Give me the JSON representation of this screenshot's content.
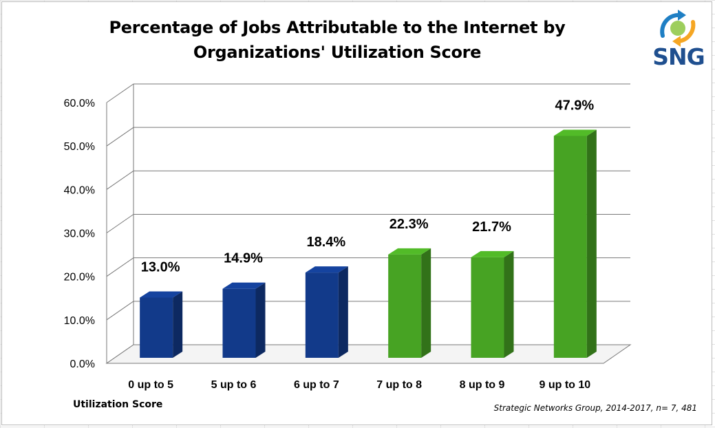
{
  "chart_data": {
    "type": "bar",
    "title_lines": [
      "Percentage of Jobs Attributable to the Internet by",
      "Organizations' Utilization Score"
    ],
    "xlabel": "Utilization Score",
    "ylabel": "",
    "categories": [
      "0 up to 5",
      "5 up to 6",
      "6 up to 7",
      "7 up to 8",
      "8 up to 9",
      "9 up to 10"
    ],
    "values": [
      13.0,
      14.9,
      18.4,
      22.3,
      21.7,
      47.9
    ],
    "data_labels": [
      "13.0%",
      "14.9%",
      "18.4%",
      "22.3%",
      "21.7%",
      "47.9%"
    ],
    "yticks": [
      0,
      10,
      20,
      30,
      40,
      50,
      60
    ],
    "ytick_labels": [
      "0.0%",
      "10.0%",
      "20.0%",
      "30.0%",
      "40.0%",
      "50.0%",
      "60.0%"
    ],
    "ylim": [
      0,
      60
    ],
    "grid": true,
    "bar_colors": [
      "#123a8a",
      "#123a8a",
      "#123a8a",
      "#47a323",
      "#47a323",
      "#47a323"
    ],
    "source": "Strategic Networks Group, 2014-2017, n= 7, 481"
  },
  "logo": {
    "text": "SNG"
  }
}
